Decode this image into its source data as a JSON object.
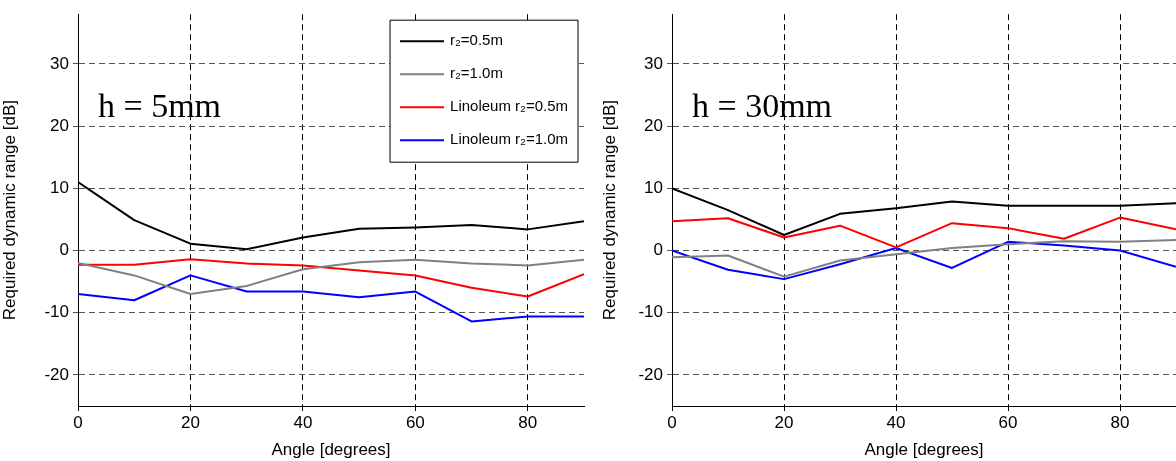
{
  "chart_data": [
    {
      "type": "line",
      "xlabel": "Angle [degrees]",
      "ylabel": "Required dynamic range [dB]",
      "annotations": [
        "h = 5mm"
      ],
      "x": [
        0,
        10,
        20,
        30,
        40,
        50,
        60,
        70,
        80,
        90
      ],
      "xlim": [
        0,
        90
      ],
      "xticks": [
        0,
        20,
        40,
        60,
        80
      ],
      "ylim": [
        -25,
        38
      ],
      "yticks": [
        -20,
        -10,
        0,
        10,
        20,
        30
      ],
      "grid": true,
      "legend": "top right",
      "series": [
        {
          "name": "r₂=0.5m",
          "color": "#000000",
          "values": [
            11,
            4.9,
            1.1,
            0.2,
            2.1,
            3.5,
            3.7,
            4.1,
            3.4,
            4.7
          ]
        },
        {
          "name": "r₂=1.0m",
          "color": "#808080",
          "values": [
            -2,
            -4,
            -7,
            -5.7,
            -3,
            -1.9,
            -1.5,
            -2.1,
            -2.4,
            -1.5
          ]
        },
        {
          "name": "Linoleum r₂=0.5m",
          "color": "#ff0000",
          "values": [
            -2.3,
            -2.3,
            -1.4,
            -2.1,
            -2.4,
            -3.2,
            -4,
            -6,
            -7.4,
            -3.8
          ]
        },
        {
          "name": "Linoleum r₂=1.0m",
          "color": "#0000ff",
          "values": [
            -7,
            -8,
            -4,
            -6.6,
            -6.6,
            -7.5,
            -6.6,
            -11.4,
            -10.6,
            -10.6
          ]
        }
      ]
    },
    {
      "type": "line",
      "xlabel": "Angle [degrees]",
      "ylabel": "Required dynamic range [dB]",
      "annotations": [
        "h = 30mm"
      ],
      "x": [
        0,
        10,
        20,
        30,
        40,
        50,
        60,
        70,
        80,
        90
      ],
      "xlim": [
        0,
        90
      ],
      "xticks": [
        0,
        20,
        40,
        60,
        80
      ],
      "ylim": [
        -25,
        38
      ],
      "yticks": [
        -20,
        -10,
        0,
        10,
        20,
        30
      ],
      "grid": true,
      "series": [
        {
          "color": "#000000",
          "values": [
            10,
            6.5,
            2.5,
            5.9,
            6.8,
            7.9,
            7.2,
            7.2,
            7.2,
            7.6
          ]
        },
        {
          "color": "#808080",
          "values": [
            -1.1,
            -0.8,
            -4.2,
            -1.6,
            -0.6,
            0.4,
            1,
            1.5,
            1.4,
            1.7
          ]
        },
        {
          "color": "#ff0000",
          "values": [
            4.7,
            5.2,
            2.1,
            4,
            0.5,
            4.4,
            3.6,
            1.9,
            5.3,
            3.4
          ]
        },
        {
          "color": "#0000ff",
          "values": [
            0,
            -3.1,
            -4.6,
            -2.2,
            0.4,
            -2.8,
            1.4,
            0.8,
            0,
            -2.6
          ]
        }
      ]
    }
  ]
}
